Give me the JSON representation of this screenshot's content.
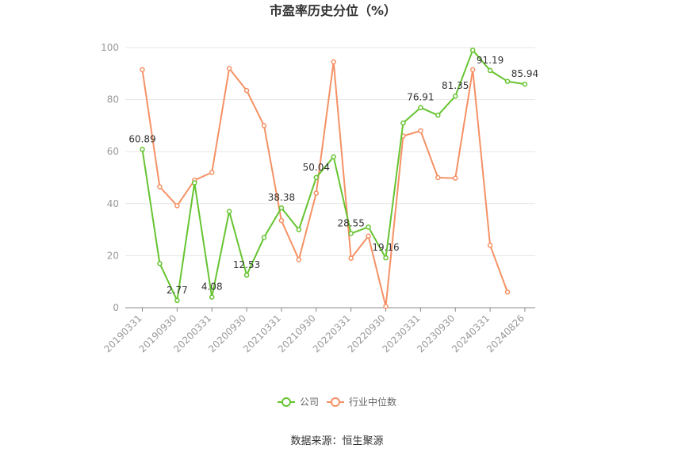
{
  "chart_data": {
    "type": "line",
    "title": "市盈率历史分位（%）",
    "ylim": [
      0,
      100
    ],
    "yticks": [
      0,
      20,
      40,
      60,
      80,
      100
    ],
    "grid": true,
    "legend_position": "bottom",
    "x": [
      "20190331",
      "20190630",
      "20190930",
      "20191231",
      "20200331",
      "20200630",
      "20200930",
      "20201231",
      "20210331",
      "20210630",
      "20210930",
      "20211231",
      "20220331",
      "20220630",
      "20220930",
      "20221231",
      "20230331",
      "20230630",
      "20230930",
      "20231231",
      "20240331",
      "20240630",
      "20240826"
    ],
    "xtick_labels": [
      "20190331",
      "20190930",
      "20200331",
      "20200930",
      "20210331",
      "20210930",
      "20220331",
      "20220930",
      "20230331",
      "20230930",
      "20240331",
      "20240826"
    ],
    "series": [
      {
        "name": "公司",
        "color": "#66c431",
        "values": [
          60.89,
          17,
          2.77,
          48,
          4.08,
          37,
          12.53,
          27,
          38.38,
          30,
          50.04,
          58,
          28.55,
          31,
          19.16,
          71,
          76.91,
          74,
          81.35,
          99,
          91.19,
          87,
          85.94
        ],
        "labels": [
          "60.89",
          "",
          "2.77",
          "",
          "4.08",
          "",
          "12.53",
          "",
          "38.38",
          "",
          "50.04",
          "",
          "28.55",
          "",
          "19.16",
          "",
          "76.91",
          "",
          "81.35",
          "",
          "91.19",
          "",
          "85.94"
        ]
      },
      {
        "name": "行业中位数",
        "color": "#f59165",
        "values": [
          91.5,
          46.5,
          39.2,
          49,
          52,
          92,
          83.5,
          70,
          33.5,
          18.5,
          44,
          94.5,
          19,
          27.5,
          0.5,
          66,
          68,
          50,
          49.8,
          91.5,
          24,
          6,
          null
        ]
      }
    ]
  },
  "footer": {
    "source": "数据来源：恒生聚源"
  }
}
